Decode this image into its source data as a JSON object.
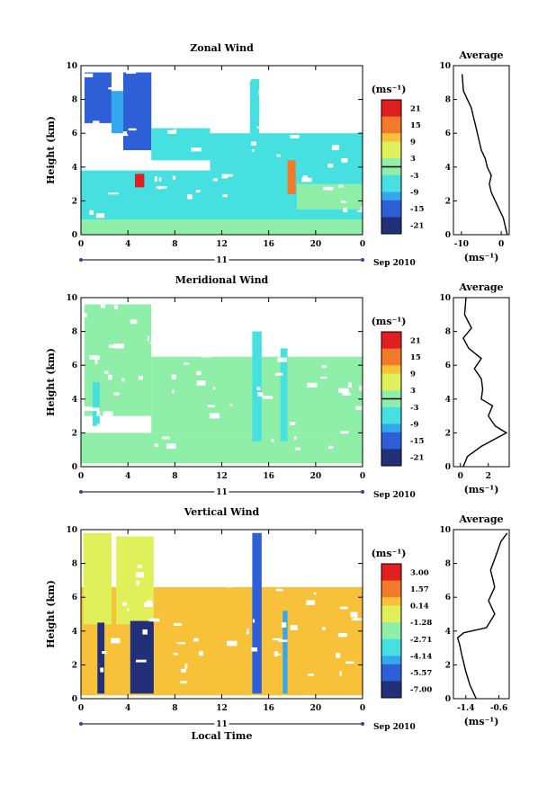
{
  "x_axis": {
    "ticks": [
      "0",
      "4",
      "8",
      "12",
      "16",
      "20",
      "0"
    ],
    "day_label": "11",
    "date_label": "Sep 2010",
    "title": "Local Time"
  },
  "panels": [
    {
      "id": "zonal",
      "title": "Zonal Wind",
      "ylabel": "Height (km)",
      "yticks": [
        "0",
        "2",
        "4",
        "6",
        "8",
        "10"
      ],
      "colorbar": {
        "unit": "(ms⁻¹)",
        "labels": [
          "21",
          "15",
          "9",
          "3",
          "-3",
          "-9",
          "-15",
          "-21"
        ],
        "zero_line": true
      },
      "average": {
        "title": "Average",
        "unit": "(ms⁻¹)",
        "xticks": [
          "-10",
          "0"
        ],
        "yticks": [
          "0",
          "2",
          "4",
          "6",
          "8",
          "10"
        ]
      }
    },
    {
      "id": "meridional",
      "title": "Meridional Wind",
      "ylabel": "Height (km)",
      "yticks": [
        "0",
        "2",
        "4",
        "6",
        "8",
        "10"
      ],
      "colorbar": {
        "unit": "(ms⁻¹)",
        "labels": [
          "21",
          "15",
          "9",
          "3",
          "-3",
          "-9",
          "-15",
          "-21"
        ],
        "zero_line": true
      },
      "average": {
        "title": "Average",
        "unit": "(ms⁻¹)",
        "xticks": [
          "0",
          "2"
        ],
        "yticks": [
          "0",
          "2",
          "4",
          "6",
          "8",
          "10"
        ]
      }
    },
    {
      "id": "vertical",
      "title": "Vertical Wind",
      "ylabel": "Height (km)",
      "yticks": [
        "0",
        "2",
        "4",
        "6",
        "8",
        "10"
      ],
      "colorbar": {
        "unit": "(ms⁻¹)",
        "labels": [
          "3.00",
          "1.57",
          "0.14",
          "-1.28",
          "-2.71",
          "-4.14",
          "-5.57",
          "-7.00"
        ],
        "zero_line": false
      },
      "average": {
        "title": "Average",
        "unit": "(ms⁻¹)",
        "xticks": [
          "-1.4",
          "-0.6"
        ],
        "yticks": [
          "0",
          "2",
          "4",
          "6",
          "8",
          "10"
        ]
      }
    }
  ],
  "chart_data": [
    {
      "type": "heatmap",
      "title": "Zonal Wind",
      "xlabel": "",
      "ylabel": "Height (km)",
      "xlim": [
        0,
        24
      ],
      "ylim": [
        0,
        10
      ],
      "zlim": [
        -24,
        24
      ],
      "colorscale": [
        "#22307a",
        "#2f5fd6",
        "#33a8ee",
        "#46e0e0",
        "#8fefa8",
        "#e0f05a",
        "#f7c23a",
        "#f07a2a",
        "#e02020"
      ],
      "features": [
        {
          "x0": 0.3,
          "x1": 2.6,
          "y0": 6.6,
          "y1": 9.6,
          "v": -14
        },
        {
          "x0": 2.6,
          "x1": 3.6,
          "y0": 6.0,
          "y1": 8.5,
          "v": -10
        },
        {
          "x0": 3.6,
          "x1": 6.0,
          "y0": 5.0,
          "y1": 9.6,
          "v": -16
        },
        {
          "x0": 6.0,
          "x1": 11.0,
          "y0": 4.4,
          "y1": 6.3,
          "v": -6
        },
        {
          "x0": 11.0,
          "x1": 24.0,
          "y0": 3.8,
          "y1": 6.0,
          "v": -5
        },
        {
          "x0": 0.0,
          "x1": 24.0,
          "y0": 0.7,
          "y1": 3.8,
          "v": -6
        },
        {
          "x0": 0.0,
          "x1": 24.0,
          "y0": 0.0,
          "y1": 0.9,
          "v": 2
        },
        {
          "x0": 4.6,
          "x1": 5.4,
          "y0": 2.8,
          "y1": 3.6,
          "v": 23
        },
        {
          "x0": 14.4,
          "x1": 15.2,
          "y0": 2.2,
          "y1": 9.2,
          "v": -3
        },
        {
          "x0": 17.6,
          "x1": 18.3,
          "y0": 2.4,
          "y1": 4.4,
          "v": 16
        },
        {
          "x0": 18.4,
          "x1": 24.0,
          "y0": 1.5,
          "y1": 3.0,
          "v": -1
        }
      ]
    },
    {
      "type": "heatmap",
      "title": "Meridional Wind",
      "xlabel": "",
      "ylabel": "Height (km)",
      "xlim": [
        0,
        24
      ],
      "ylim": [
        0,
        10
      ],
      "zlim": [
        -24,
        24
      ],
      "colorscale": [
        "#22307a",
        "#2f5fd6",
        "#33a8ee",
        "#46e0e0",
        "#8fefa8",
        "#e0f05a",
        "#f7c23a",
        "#f07a2a",
        "#e02020"
      ],
      "features": [
        {
          "x0": 0.3,
          "x1": 6.0,
          "y0": 3.0,
          "y1": 9.6,
          "v": 0
        },
        {
          "x0": 6.0,
          "x1": 24.0,
          "y0": 2.0,
          "y1": 6.5,
          "v": 1
        },
        {
          "x0": 0.0,
          "x1": 24.0,
          "y0": 0.2,
          "y1": 2.0,
          "v": 2
        },
        {
          "x0": 1.0,
          "x1": 1.6,
          "y0": 2.4,
          "y1": 5.0,
          "v": -8
        },
        {
          "x0": 14.6,
          "x1": 15.4,
          "y0": 1.5,
          "y1": 8.0,
          "v": -3
        },
        {
          "x0": 17.0,
          "x1": 17.6,
          "y0": 1.5,
          "y1": 7.0,
          "v": -3
        }
      ]
    },
    {
      "type": "heatmap",
      "title": "Vertical Wind",
      "xlabel": "Local Time",
      "ylabel": "Height (km)",
      "xlim": [
        0,
        24
      ],
      "ylim": [
        0,
        10
      ],
      "zlim": [
        -7.0,
        3.0
      ],
      "colorscale": [
        "#22307a",
        "#2f5fd6",
        "#33a8ee",
        "#46e0e0",
        "#8fefa8",
        "#e0f05a",
        "#f7c23a",
        "#f07a2a",
        "#e02020"
      ],
      "features": [
        {
          "x0": 0.0,
          "x1": 24.0,
          "y0": 0.2,
          "y1": 6.6,
          "v": 0.3
        },
        {
          "x0": 0.2,
          "x1": 2.6,
          "y0": 4.4,
          "y1": 9.8,
          "v": -0.8
        },
        {
          "x0": 3.0,
          "x1": 6.2,
          "y0": 4.4,
          "y1": 9.6,
          "v": -0.8
        },
        {
          "x0": 1.4,
          "x1": 2.0,
          "y0": 0.3,
          "y1": 4.5,
          "v": -6.8
        },
        {
          "x0": 4.2,
          "x1": 6.2,
          "y0": 0.3,
          "y1": 4.6,
          "v": -6.8
        },
        {
          "x0": 14.6,
          "x1": 15.4,
          "y0": 0.3,
          "y1": 9.8,
          "v": -5.5
        },
        {
          "x0": 17.2,
          "x1": 17.6,
          "y0": 0.3,
          "y1": 5.2,
          "v": -4.5
        }
      ]
    },
    {
      "type": "line",
      "title": "Average",
      "xlabel": "(ms⁻¹)",
      "ylabel": "",
      "xlim": [
        -12,
        2
      ],
      "ylim": [
        0,
        10
      ],
      "x": [
        1.5,
        1.0,
        0.5,
        -0.5,
        -1.5,
        -2.5,
        -3.0,
        -2.5,
        -3.5,
        -4.0,
        -5.0,
        -5.5,
        -6.0,
        -6.5,
        -7.0,
        -7.5,
        -8.5,
        -9.5,
        -9.8
      ],
      "y": [
        0.0,
        0.5,
        1.0,
        1.5,
        2.0,
        2.5,
        3.0,
        3.5,
        4.0,
        4.5,
        5.0,
        5.5,
        6.0,
        6.5,
        7.0,
        7.5,
        8.0,
        8.5,
        9.5
      ]
    },
    {
      "type": "line",
      "title": "Average",
      "xlabel": "(ms⁻¹)",
      "ylabel": "",
      "xlim": [
        -0.5,
        3.5
      ],
      "ylim": [
        0,
        10
      ],
      "x": [
        0.2,
        0.5,
        1.5,
        3.3,
        2.5,
        2.0,
        2.3,
        1.5,
        1.6,
        1.5,
        1.0,
        1.5,
        0.6,
        0.2,
        0.8,
        0.3,
        0.4
      ],
      "y": [
        0.0,
        0.6,
        1.2,
        2.0,
        2.4,
        3.0,
        3.6,
        4.0,
        4.6,
        5.2,
        5.8,
        6.4,
        7.0,
        7.6,
        8.2,
        9.0,
        10.0
      ]
    },
    {
      "type": "line",
      "title": "Average",
      "xlabel": "(ms⁻¹)",
      "ylabel": "",
      "xlim": [
        -1.7,
        -0.35
      ],
      "ylim": [
        0,
        10
      ],
      "x": [
        -1.15,
        -1.3,
        -1.4,
        -1.5,
        -1.55,
        -1.6,
        -1.45,
        -0.9,
        -0.7,
        -0.85,
        -0.7,
        -0.8,
        -0.65,
        -0.55,
        -0.4
      ],
      "y": [
        0.0,
        0.8,
        1.6,
        2.6,
        3.2,
        3.6,
        3.9,
        4.2,
        5.0,
        5.8,
        6.6,
        7.6,
        8.6,
        9.3,
        9.8
      ]
    }
  ]
}
